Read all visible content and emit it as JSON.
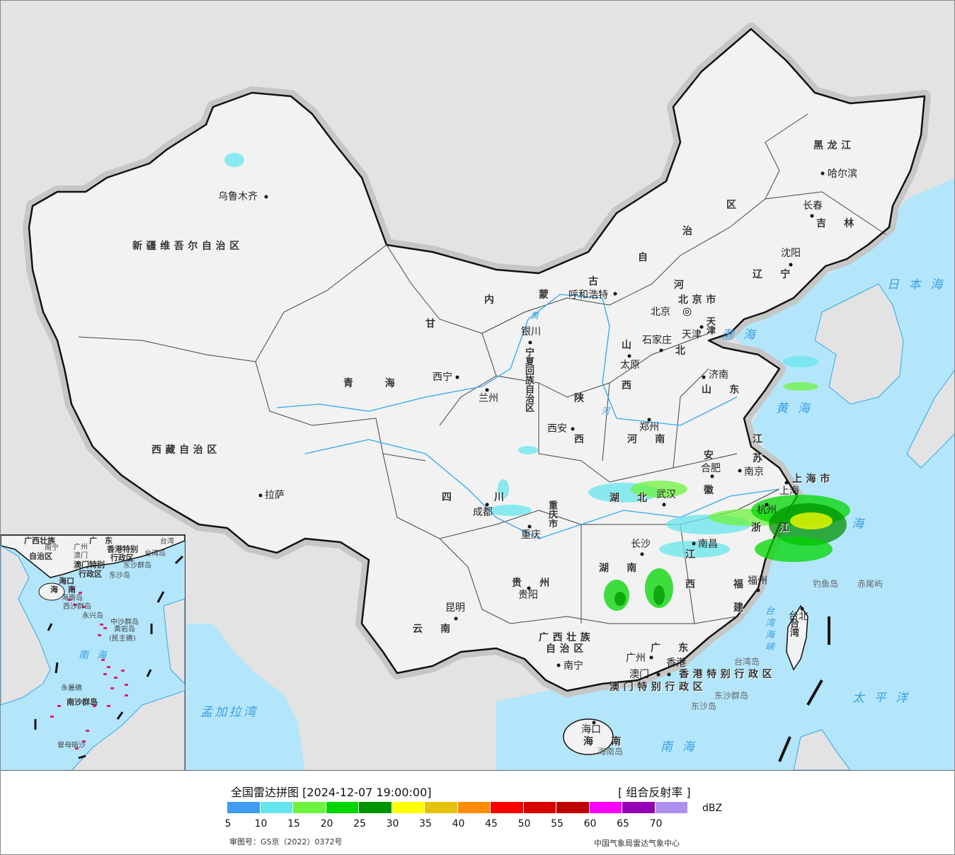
{
  "legend": {
    "title": "全国雷达拼图 [2024-12-07 19:00:00]",
    "product": "[ 组合反射率 ]",
    "unit": "dBZ",
    "ticks": [
      "5",
      "10",
      "15",
      "20",
      "25",
      "30",
      "35",
      "40",
      "45",
      "50",
      "55",
      "60",
      "65",
      "70"
    ],
    "colors": [
      "#3f9cf0",
      "#66e6ec",
      "#6ef33e",
      "#00d600",
      "#009400",
      "#ffff00",
      "#e6c300",
      "#ff8c00",
      "#ff0000",
      "#d90000",
      "#bf0000",
      "#ff00ff",
      "#9400b4",
      "#ae8eee"
    ]
  },
  "footer": {
    "approval": "审图号：GS京（2022）0372号",
    "agency": "中国气象局雷达气象中心"
  },
  "map": {
    "colors": {
      "land_china": "#f2f2f2",
      "land_other": "#e3e3e3",
      "sea": "#b4e6fb",
      "border": "#111111",
      "river": "#2fa8ee"
    },
    "provinces": [
      "新疆维吾尔自治区",
      "西藏自治区",
      "青　　海",
      "甘",
      "内",
      "蒙",
      "古",
      "自",
      "治",
      "区",
      "黑龙江",
      "吉　林",
      "辽　宁",
      "河",
      "北",
      "山",
      "西",
      "山　东",
      "陕",
      "西",
      "河　南",
      "江",
      "苏",
      "安",
      "徽",
      "湖　北",
      "四",
      "川",
      "重庆市",
      "浙　江",
      "湖　南",
      "江",
      "西",
      "贵　州",
      "福",
      "建",
      "云　南",
      "广西壮族",
      "自治区",
      "广　东",
      "海　南",
      "台湾",
      "宁夏回族自治区",
      "上海市",
      "香港特别行政区",
      "澳门特别行政区",
      "北京市",
      "天津"
    ],
    "cities": [
      "乌鲁木齐",
      "拉萨",
      "西宁",
      "兰州",
      "银川",
      "呼和浩特",
      "北京",
      "天津",
      "石家庄",
      "太原",
      "济南",
      "郑州",
      "西安",
      "合肥",
      "南京",
      "上海",
      "杭州",
      "武汉",
      "成都",
      "重庆",
      "长沙",
      "南昌",
      "贵阳",
      "福州",
      "昆明",
      "南宁",
      "广州",
      "香港",
      "澳门",
      "海口",
      "台北",
      "哈尔滨",
      "长春",
      "沈阳"
    ],
    "islands": [
      "钓鱼岛",
      "赤尾屿",
      "台湾岛",
      "东沙群岛",
      "东沙岛",
      "海南岛"
    ],
    "seas": [
      "日本海",
      "渤海",
      "黄海",
      "海",
      "太平洋",
      "南海",
      "孟加拉湾",
      "台湾海峡",
      "黄",
      "河"
    ],
    "capital_icon": "bullseye-icon"
  },
  "inset": {
    "labels": [
      "广西壮族",
      "自治区",
      "南宁",
      "广　东",
      "广州",
      "澳门",
      "香港特别",
      "行政区",
      "澳门特别",
      "行政区",
      "台湾",
      "台湾岛",
      "东沙群岛",
      "东沙岛",
      "海口",
      "海",
      "南",
      "海南岛",
      "西沙群岛",
      "永兴岛",
      "中沙群岛",
      "黄岩岛",
      "(民主礁)",
      "永暑礁",
      "南沙群岛",
      "曾母暗沙"
    ],
    "sea": "南海"
  }
}
